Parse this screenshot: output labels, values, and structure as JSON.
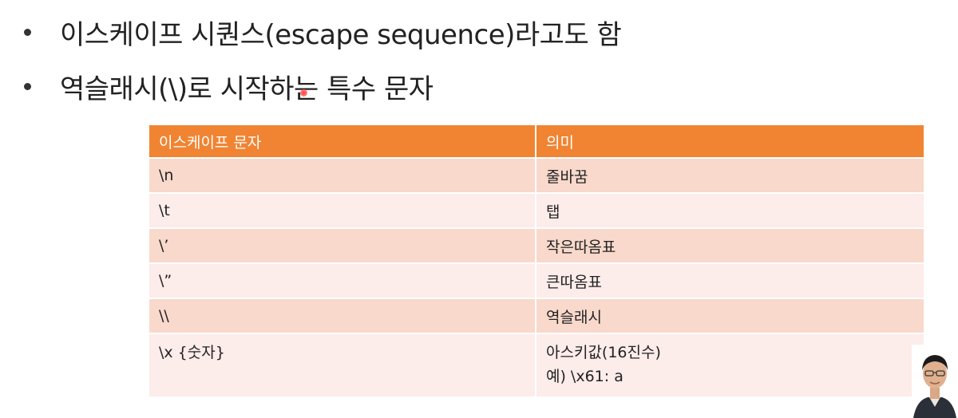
{
  "bullets": [
    "이스케이프 시퀀스(escape sequence)라고도 함",
    "역슬래시(\\)로 시작하는 특수 문자"
  ],
  "table": {
    "headers": [
      "이스케이프 문자",
      "의미"
    ],
    "rows": [
      {
        "code": "\\n",
        "meaning": [
          "줄바꿈"
        ]
      },
      {
        "code": "\\t",
        "meaning": [
          "탭"
        ]
      },
      {
        "code": "\\’",
        "meaning": [
          "작은따옴표"
        ]
      },
      {
        "code": "\\”",
        "meaning": [
          "큰따옴표"
        ]
      },
      {
        "code": "\\\\",
        "meaning": [
          "역슬래시"
        ]
      },
      {
        "code": "\\x {숫자}",
        "meaning": [
          "아스키값(16진수)",
          "예) \\x61: a"
        ]
      }
    ]
  },
  "colors": {
    "header_bg": "#f08432",
    "row_odd_bg": "#f8d9cc",
    "row_even_bg": "#fcecea"
  }
}
